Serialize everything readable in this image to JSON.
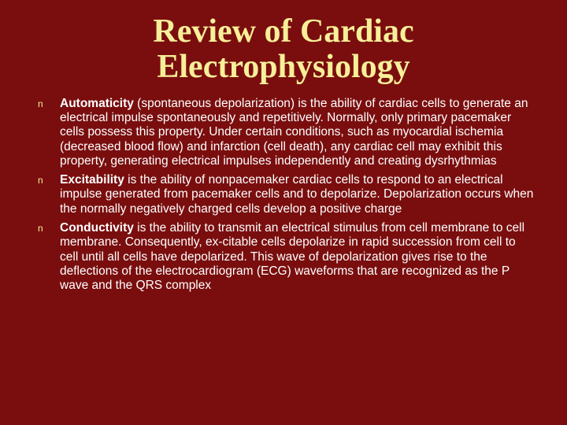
{
  "colors": {
    "background": "#7a0e0e",
    "title": "#f7ef99",
    "bullet_marker": "#f7ef99",
    "body_text": "#ffffff"
  },
  "typography": {
    "title_font": "Georgia, serif",
    "title_size_pt": 32,
    "body_font": "Verdana, sans-serif",
    "body_size_pt": 12
  },
  "title": "Review of Cardiac Electrophysiology",
  "bullets": [
    {
      "term": "Automaticity",
      "rest": " (spontaneous depolarization) is the ability of cardiac cells to generate an electrical impulse spontaneously and repetitively. Normally, only primary pacemaker cells possess this property. Under certain conditions, such as myocardial ischemia (decreased blood flow) and infarction (cell death), any cardiac cell may exhibit this property, generating electrical impulses independently and creating dysrhythmias"
    },
    {
      "term": "Excitability",
      "rest": " is the ability of nonpacemaker cardiac cells to respond to an electrical impulse generated from pacemaker cells and to depolarize. Depolarization occurs when the normally negatively charged cells develop a positive charge"
    },
    {
      "term": "Conductivity",
      "rest": " is the ability to transmit an electrical stimulus from cell membrane to cell membrane. Consequently, ex-citable cells depolarize in rapid succession from cell to cell until all cells have depolarized. This wave of depolarization gives rise to the deflections of the electrocardiogram (ECG) waveforms that are recognized as the P wave and the QRS complex"
    }
  ]
}
